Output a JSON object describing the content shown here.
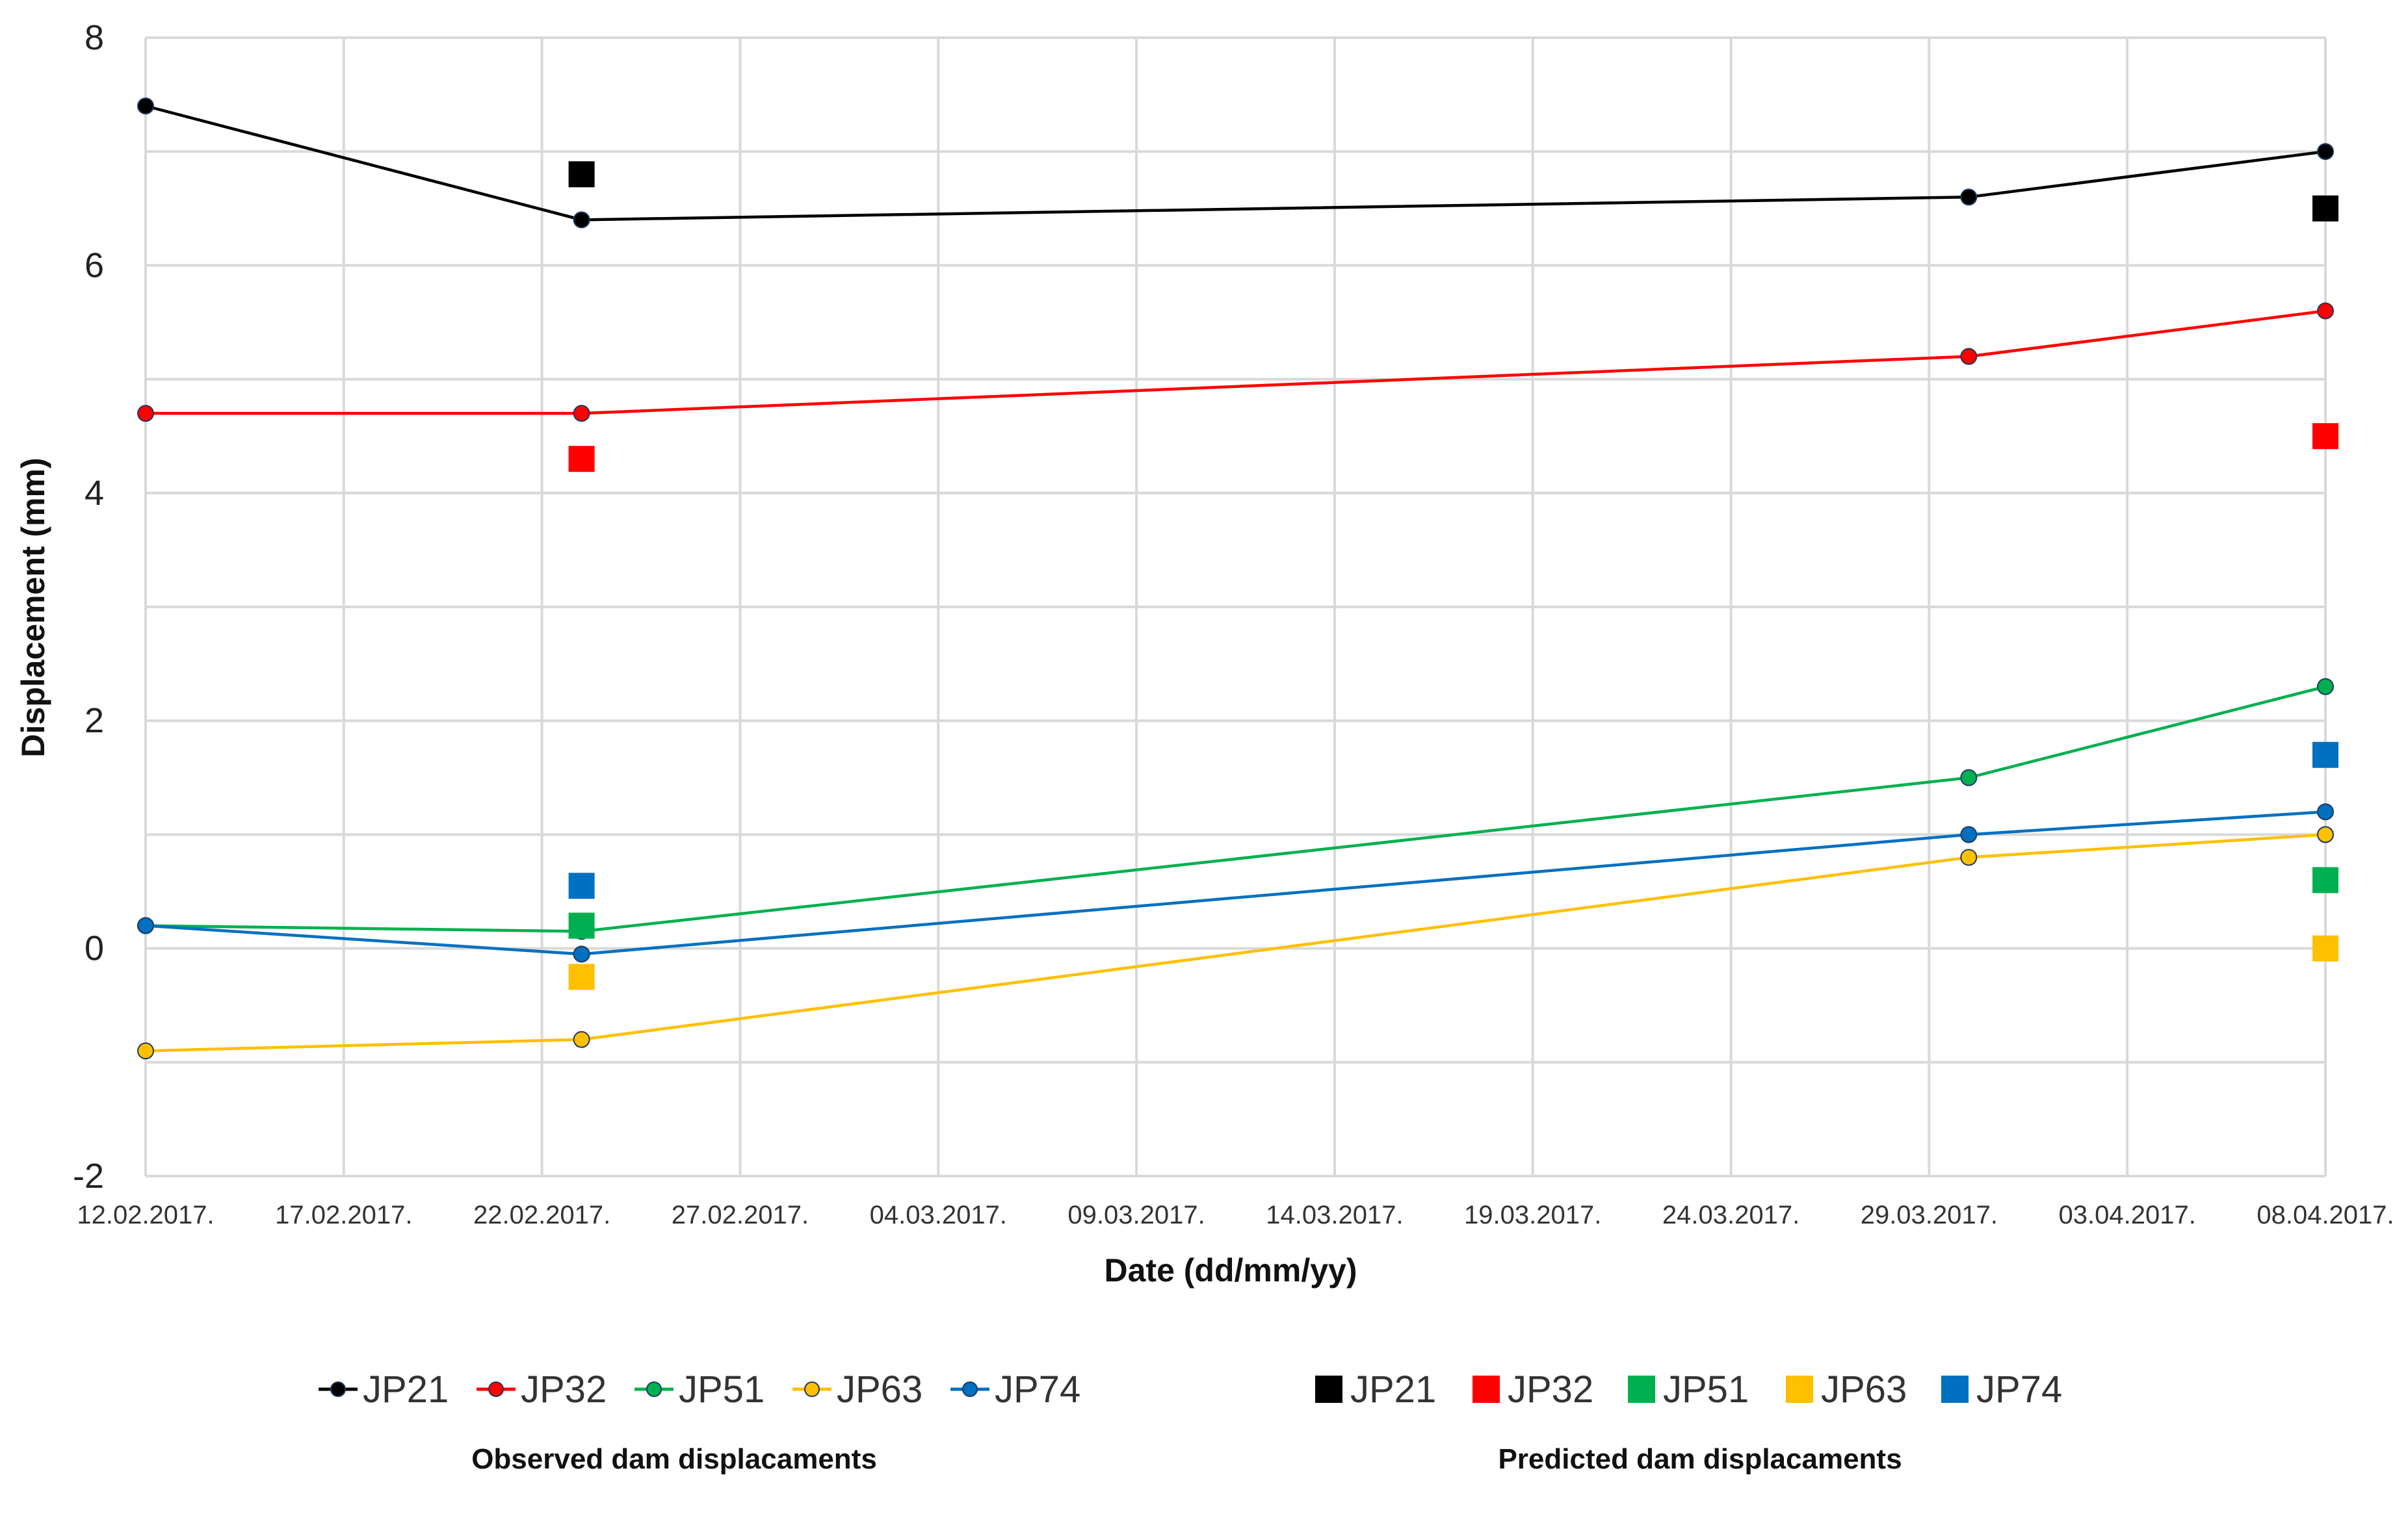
{
  "chart_data": {
    "type": "line",
    "title": "",
    "xlabel": "Date (dd/mm/yy)",
    "ylabel": "Displacement (mm)",
    "ylim": [
      -2,
      8
    ],
    "yticks": [
      -2,
      0,
      2,
      4,
      6,
      8
    ],
    "x_tick_labels": [
      "12.02.2017.",
      "17.02.2017.",
      "22.02.2017.",
      "27.02.2017.",
      "04.03.2017.",
      "09.03.2017.",
      "14.03.2017.",
      "19.03.2017.",
      "24.03.2017.",
      "29.03.2017.",
      "03.04.2017.",
      "08.04.2017."
    ],
    "x_tick_dates": [
      "2017-02-12",
      "2017-02-17",
      "2017-02-22",
      "2017-02-27",
      "2017-03-04",
      "2017-03-09",
      "2017-03-14",
      "2017-03-19",
      "2017-03-24",
      "2017-03-29",
      "2017-04-03",
      "2017-04-08"
    ],
    "xlim": [
      "2017-02-12",
      "2017-04-08"
    ],
    "grid": true,
    "legend_position": "bottom",
    "observed": {
      "caption": "Observed dam displacaments",
      "series": [
        {
          "name": "JP21",
          "color": "#000000",
          "x": [
            "2017-02-12",
            "2017-02-23",
            "2017-03-30",
            "2017-04-08"
          ],
          "y": [
            7.4,
            6.4,
            6.6,
            7.0
          ]
        },
        {
          "name": "JP32",
          "color": "#ff0000",
          "x": [
            "2017-02-12",
            "2017-02-23",
            "2017-03-30",
            "2017-04-08"
          ],
          "y": [
            4.7,
            4.7,
            5.2,
            5.6
          ]
        },
        {
          "name": "JP51",
          "color": "#00b050",
          "x": [
            "2017-02-12",
            "2017-02-23",
            "2017-03-30",
            "2017-04-08"
          ],
          "y": [
            0.2,
            0.15,
            1.5,
            2.3
          ]
        },
        {
          "name": "JP63",
          "color": "#ffc000",
          "x": [
            "2017-02-12",
            "2017-02-23",
            "2017-03-30",
            "2017-04-08"
          ],
          "y": [
            -0.9,
            -0.8,
            0.8,
            1.0
          ]
        },
        {
          "name": "JP74",
          "color": "#0070c0",
          "x": [
            "2017-02-12",
            "2017-02-23",
            "2017-03-30",
            "2017-04-08"
          ],
          "y": [
            0.2,
            -0.05,
            1.0,
            1.2
          ]
        }
      ]
    },
    "predicted": {
      "caption": "Predicted dam displacaments",
      "series": [
        {
          "name": "JP21",
          "color": "#000000",
          "x": [
            "2017-02-23",
            "2017-04-08"
          ],
          "y": [
            6.8,
            6.5
          ]
        },
        {
          "name": "JP32",
          "color": "#ff0000",
          "x": [
            "2017-02-23",
            "2017-04-08"
          ],
          "y": [
            4.3,
            4.5
          ]
        },
        {
          "name": "JP51",
          "color": "#00b050",
          "x": [
            "2017-02-23",
            "2017-04-08"
          ],
          "y": [
            0.2,
            0.6
          ]
        },
        {
          "name": "JP63",
          "color": "#ffc000",
          "x": [
            "2017-02-23",
            "2017-04-08"
          ],
          "y": [
            -0.25,
            0.0
          ]
        },
        {
          "name": "JP74",
          "color": "#0070c0",
          "x": [
            "2017-02-23",
            "2017-04-08"
          ],
          "y": [
            0.55,
            1.7
          ]
        }
      ]
    }
  }
}
